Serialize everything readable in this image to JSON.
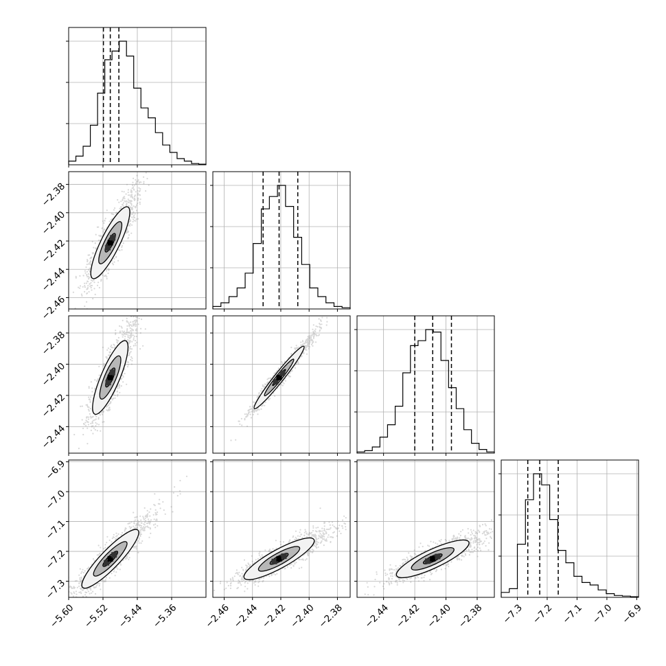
{
  "chart_data": {
    "type": "corner",
    "title": "",
    "n_params": 4,
    "grid": true,
    "axes": [
      {
        "lim": [
          -5.6,
          -5.28
        ],
        "ticks": [
          -5.6,
          -5.52,
          -5.44,
          -5.36
        ],
        "tick_labels": [
          "−5.60",
          "−5.52",
          "−5.44",
          "−5.36"
        ],
        "quantiles": [
          -5.519,
          -5.503,
          -5.483
        ]
      },
      {
        "lim": [
          -2.468,
          -2.371
        ],
        "ticks": [
          -2.46,
          -2.44,
          -2.42,
          -2.4,
          -2.38
        ],
        "tick_labels": [
          "−2.46",
          "−2.44",
          "−2.42",
          "−2.40",
          "−2.38"
        ],
        "quantiles": [
          -2.4325,
          -2.4212,
          -2.408
        ]
      },
      {
        "lim": [
          -2.457,
          -2.369
        ],
        "ticks": [
          -2.44,
          -2.42,
          -2.4,
          -2.38
        ],
        "tick_labels": [
          "−2.44",
          "−2.42",
          "−2.40",
          "−2.38"
        ],
        "quantiles": [
          -2.42,
          -2.4085,
          -2.3965
        ]
      },
      {
        "lim": [
          -7.354,
          -6.894
        ],
        "ticks": [
          -7.3,
          -7.2,
          -7.1,
          -7.0,
          -6.9
        ],
        "tick_labels": [
          "−7.3",
          "−7.2",
          "−7.1",
          "−7.0",
          "−6.9"
        ],
        "quantiles": [
          -7.265,
          -7.225,
          -7.163
        ]
      }
    ],
    "histograms": [
      [
        0.03,
        0.07,
        0.15,
        0.32,
        0.58,
        0.85,
        0.92,
        1.0,
        0.88,
        0.62,
        0.46,
        0.38,
        0.26,
        0.16,
        0.1,
        0.05,
        0.03,
        0.01,
        0.005
      ],
      [
        0.02,
        0.05,
        0.1,
        0.17,
        0.29,
        0.53,
        0.81,
        0.91,
        1.0,
        0.83,
        0.58,
        0.36,
        0.17,
        0.1,
        0.05,
        0.02,
        0.01
      ],
      [
        0.01,
        0.02,
        0.05,
        0.13,
        0.23,
        0.38,
        0.65,
        0.87,
        0.91,
        1.0,
        0.98,
        0.75,
        0.53,
        0.36,
        0.19,
        0.08,
        0.03,
        0.01
      ],
      [
        0.04,
        0.07,
        0.43,
        0.79,
        1.0,
        0.91,
        0.63,
        0.38,
        0.28,
        0.17,
        0.12,
        0.1,
        0.06,
        0.03,
        0.015,
        0.01,
        0.005
      ]
    ],
    "pairs": [
      {
        "row": 1,
        "col": 0,
        "center": [
          -5.503,
          -2.4212
        ]
      },
      {
        "row": 2,
        "col": 0,
        "center": [
          -5.503,
          -2.4085
        ]
      },
      {
        "row": 2,
        "col": 1,
        "center": [
          -2.4212,
          -2.4085
        ]
      },
      {
        "row": 3,
        "col": 0,
        "center": [
          -5.503,
          -7.225
        ]
      },
      {
        "row": 3,
        "col": 1,
        "center": [
          -2.4212,
          -7.225
        ]
      },
      {
        "row": 3,
        "col": 2,
        "center": [
          -2.4085,
          -7.225
        ]
      }
    ]
  }
}
